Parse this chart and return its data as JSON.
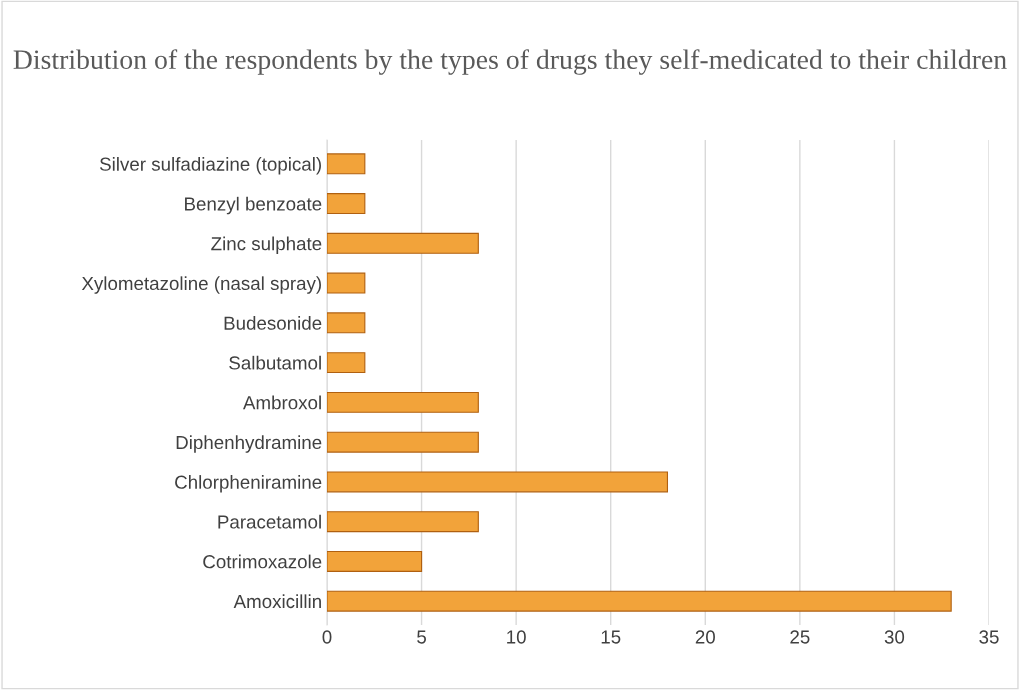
{
  "chart_data": {
    "type": "bar",
    "orientation": "horizontal",
    "title": "Distribution of the respondents by the types of drugs they self-medicated to their children",
    "categories": [
      "Silver sulfadiazine (topical)",
      "Benzyl benzoate",
      "Zinc sulphate",
      "Xylometazoline (nasal spray)",
      "Budesonide",
      "Salbutamol",
      "Ambroxol",
      "Diphenhydramine",
      "Chlorpheniramine",
      "Paracetamol",
      "Cotrimoxazole",
      "Amoxicillin"
    ],
    "values": [
      2,
      2,
      8,
      2,
      2,
      2,
      8,
      8,
      18,
      8,
      5,
      33
    ],
    "color": "#f2a33a",
    "xlim": [
      0,
      35
    ],
    "xticks": [
      0,
      5,
      10,
      15,
      20,
      25,
      30,
      35
    ],
    "grid": "x",
    "legend": false
  }
}
